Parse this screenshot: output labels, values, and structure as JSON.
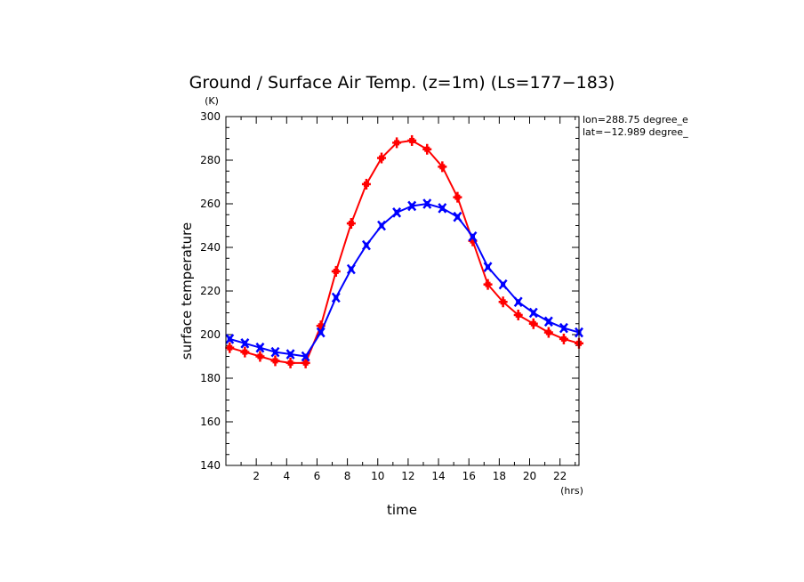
{
  "chart_data": {
    "type": "line",
    "title": "Ground / Surface Air Temp. (z=1m) (Ls=177−183)",
    "xlabel": "time",
    "ylabel": "surface temperature",
    "x_unit": "(hrs)",
    "y_unit": "(K)",
    "xlim": [
      0,
      23.25
    ],
    "ylim": [
      140,
      300
    ],
    "x_ticks": [
      2,
      4,
      6,
      8,
      10,
      12,
      14,
      16,
      18,
      20,
      22
    ],
    "y_ticks": [
      140,
      160,
      180,
      200,
      220,
      240,
      260,
      280,
      300
    ],
    "x_tick_labels": [
      "2",
      "4",
      "6",
      "8",
      "10",
      "12",
      "14",
      "16",
      "18",
      "20",
      "22"
    ],
    "y_tick_labels": [
      "140",
      "160",
      "180",
      "200",
      "220",
      "240",
      "260",
      "280",
      "300"
    ],
    "info": [
      "lon=288.75 degree_e",
      "lat=−12.989 degree_"
    ],
    "x": [
      0.25,
      1.25,
      2.25,
      3.25,
      4.25,
      5.25,
      6.25,
      7.25,
      8.25,
      9.25,
      10.25,
      11.25,
      12.25,
      13.25,
      14.25,
      15.25,
      16.25,
      17.25,
      18.25,
      19.25,
      20.25,
      21.25,
      22.25,
      23.25
    ],
    "series": [
      {
        "color": "#ff0000",
        "marker": "plus",
        "values": [
          194,
          192,
          190,
          188,
          187,
          187,
          204,
          229,
          251,
          269,
          281,
          288,
          289,
          285,
          277,
          263,
          243,
          223,
          215,
          209,
          205,
          201,
          198,
          196
        ]
      },
      {
        "color": "#0000ff",
        "marker": "x",
        "values": [
          198,
          196,
          194,
          192,
          191,
          190,
          201,
          217,
          230,
          241,
          250,
          256,
          259,
          260,
          258,
          254,
          245,
          231,
          223,
          215,
          210,
          206,
          203,
          201
        ]
      }
    ]
  }
}
